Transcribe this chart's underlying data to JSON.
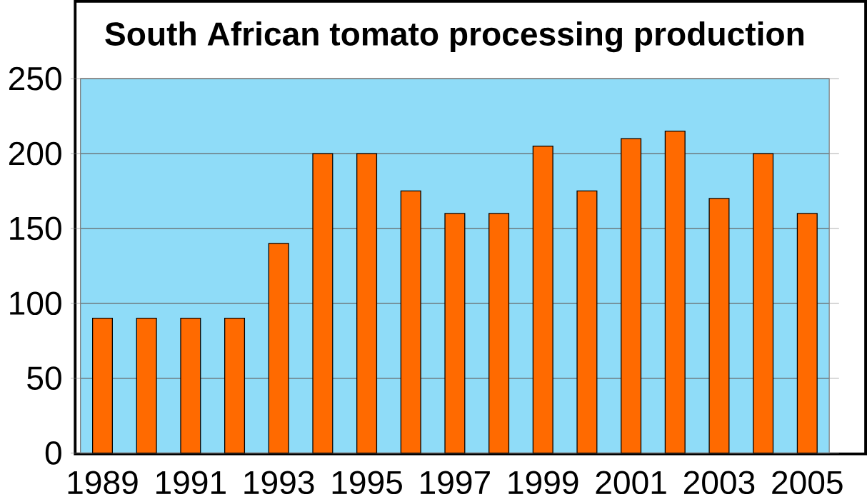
{
  "chart_data": {
    "type": "bar",
    "title": "South African tomato processing production",
    "categories": [
      "1989",
      null,
      "1991",
      null,
      "1993",
      null,
      "1995",
      null,
      "1997",
      null,
      "1999",
      null,
      "2001",
      null,
      "2003",
      null,
      "2005"
    ],
    "values": [
      90,
      90,
      90,
      90,
      140,
      200,
      200,
      175,
      160,
      160,
      205,
      175,
      210,
      215,
      170,
      200,
      160
    ],
    "color": "#ff6a00",
    "ylim": [
      0,
      250
    ],
    "yticks": [
      0,
      50,
      100,
      150,
      200,
      250
    ],
    "grid": "y"
  }
}
